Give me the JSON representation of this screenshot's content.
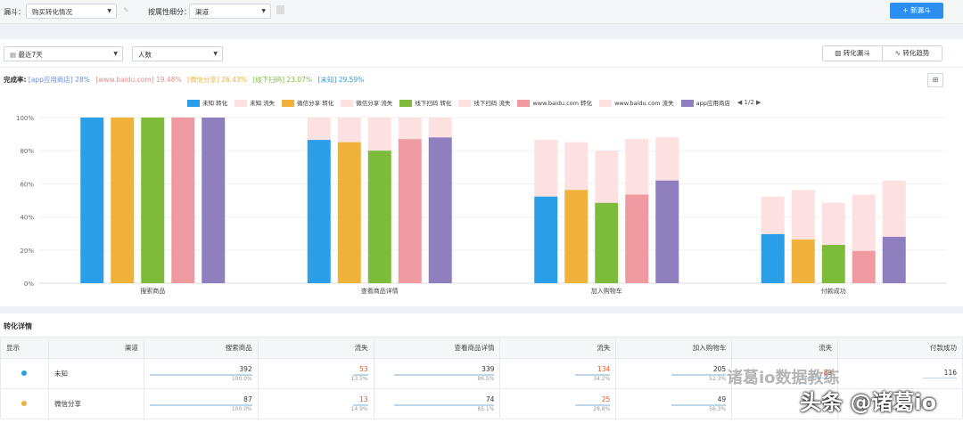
{
  "topbar": {
    "funnel_label": "漏斗：",
    "funnel_value": "购买转化情况",
    "attr_label": "按属性细分：",
    "attr_value": "渠道",
    "new_button": "+ 新漏斗"
  },
  "toolbar": {
    "date_value": "最近7天",
    "metric_value": "人数",
    "tab_funnel": "转化漏斗",
    "tab_trend": "转化趋势"
  },
  "rates": {
    "label": "完成率:",
    "items": [
      {
        "text": "[app应用商店] 28%",
        "color": "#6b8fd8"
      },
      {
        "text": "[www.baidu.com] 19.48%",
        "color": "#ee8a8a"
      },
      {
        "text": "[微信分享] 26.43%",
        "color": "#f0b23a"
      },
      {
        "text": "[线下扫码] 23.07%",
        "color": "#7dbb3a"
      },
      {
        "text": "[未知] 29.59%",
        "color": "#2a9ee6"
      }
    ]
  },
  "legend": {
    "items": [
      {
        "label": "未知 转化",
        "color": "#2a9ee6"
      },
      {
        "label": "未知 流失",
        "color": "#fde0e0"
      },
      {
        "label": "微信分享 转化",
        "color": "#f0b23a"
      },
      {
        "label": "微信分享 流失",
        "color": "#fde0e0"
      },
      {
        "label": "线下扫码 转化",
        "color": "#7dbb3a"
      },
      {
        "label": "线下扫码 流失",
        "color": "#fde0e0"
      },
      {
        "label": "www.baidu.com 转化",
        "color": "#ee9aa0"
      },
      {
        "label": "www.baidu.com 流失",
        "color": "#fde0e0"
      },
      {
        "label": "app应用商店",
        "color": "#8f7fbf"
      }
    ],
    "pager": "◀ 1/2 ▶"
  },
  "chart_data": {
    "type": "bar",
    "stacked": true,
    "categories": [
      "搜索商品",
      "查看商品详情",
      "加入购物车",
      "付款成功"
    ],
    "yticks": [
      "0%",
      "20%",
      "40%",
      "60%",
      "80%",
      "100%"
    ],
    "ylim": [
      0,
      100
    ],
    "loss_color": "#fde0e0",
    "series": [
      {
        "name": "未知",
        "color": "#2a9ee6",
        "converted": [
          100,
          86.5,
          52.3,
          29.6
        ],
        "lost": [
          0,
          13.5,
          34.2,
          22.7
        ]
      },
      {
        "name": "微信分享",
        "color": "#f0b23a",
        "converted": [
          100,
          85.1,
          56.3,
          26.4
        ],
        "lost": [
          0,
          14.9,
          28.8,
          29.9
        ]
      },
      {
        "name": "线下扫码",
        "color": "#7dbb3a",
        "converted": [
          100,
          80,
          48.5,
          23.1
        ],
        "lost": [
          0,
          20,
          31.5,
          25.4
        ]
      },
      {
        "name": "www.baidu.com",
        "color": "#ee9aa0",
        "converted": [
          100,
          87,
          53.5,
          19.5
        ],
        "lost": [
          0,
          13,
          33.5,
          34
        ]
      },
      {
        "name": "app应用商店",
        "color": "#8f7fbf",
        "converted": [
          100,
          88,
          62,
          28
        ],
        "lost": [
          0,
          12,
          26,
          34
        ]
      }
    ]
  },
  "details": {
    "title": "转化详情",
    "headers": [
      "显示",
      "渠道",
      "搜索商品",
      "流失",
      "查看商品详情",
      "流失",
      "加入购物车",
      "流失",
      "付款成功"
    ],
    "rows": [
      {
        "dot_color": "#2a9ee6",
        "channel": "未知",
        "cells": [
          {
            "n": "392",
            "p": "100.0%"
          },
          {
            "n": "53",
            "p": "13.5%"
          },
          {
            "n": "339",
            "p": "86.5%"
          },
          {
            "n": "134",
            "p": "34.2%"
          },
          {
            "n": "205",
            "p": "52.3%"
          },
          {
            "n": "89",
            "p": ""
          },
          {
            "n": "116",
            "p": ""
          }
        ]
      },
      {
        "dot_color": "#f0b23a",
        "channel": "微信分享",
        "cells": [
          {
            "n": "87",
            "p": "100.0%"
          },
          {
            "n": "13",
            "p": "14.9%"
          },
          {
            "n": "74",
            "p": "85.1%"
          },
          {
            "n": "25",
            "p": "28.8%"
          },
          {
            "n": "49",
            "p": "56.3%"
          },
          {
            "n": "",
            "p": ""
          },
          {
            "n": "",
            "p": ""
          }
        ]
      }
    ],
    "bar_fill": [
      1,
      0.135,
      0.865,
      0.342,
      0.523,
      0.3,
      0.3
    ]
  },
  "watermark": {
    "line1": "诸葛io数据教练",
    "line2": "头条 @诸葛io"
  }
}
